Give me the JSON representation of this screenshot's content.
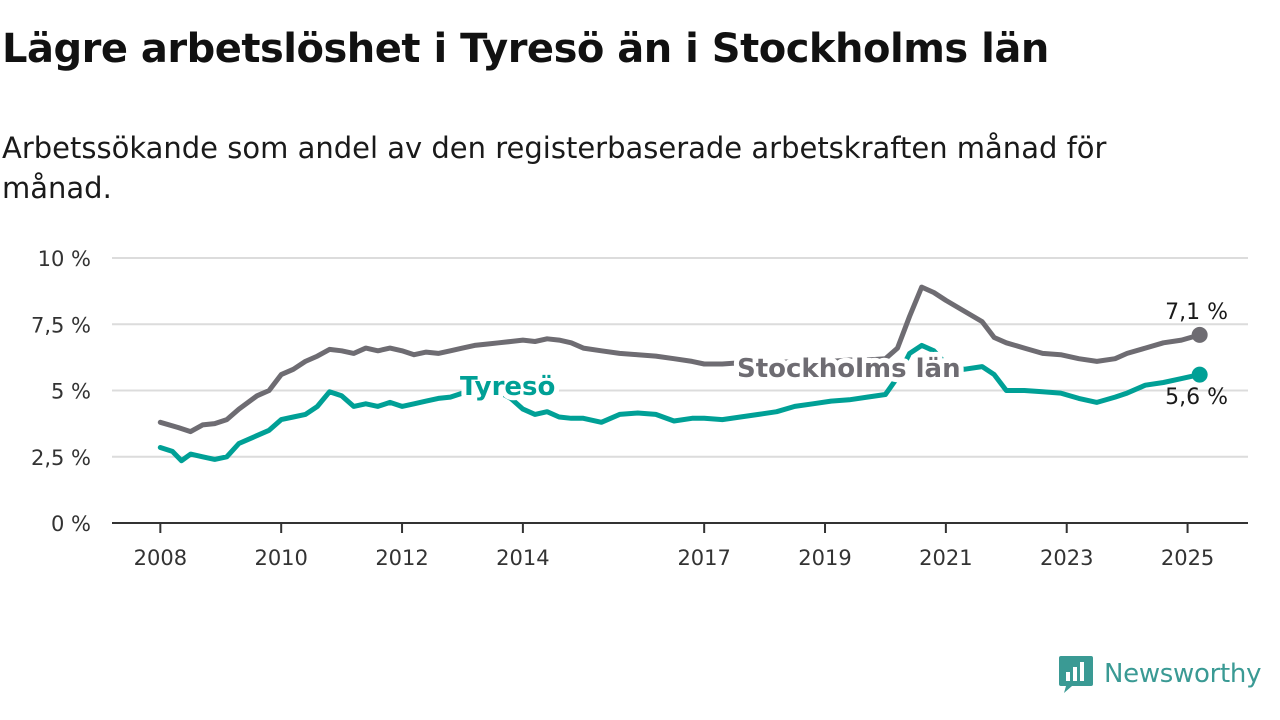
{
  "title": "Lägre arbetslöshet i Tyresö än i Stockholms län",
  "subtitle": "Arbetssökande som andel av den registerbaserade arbetskraften månad för månad.",
  "brand": {
    "name": "Newsworthy",
    "icon": "newsworthy-logo-icon"
  },
  "colors": {
    "stockholm": "#6e6c72",
    "tyreso": "#00a096",
    "grid": "#dcdcdc",
    "axis": "#333333",
    "brand": "#3a9a94"
  },
  "chart_data": {
    "type": "line",
    "title": "Lägre arbetslöshet i Tyresö än i Stockholms län",
    "subtitle": "Arbetssökande som andel av den registerbaserade arbetskraften månad för månad.",
    "x_ticks": [
      2008,
      2010,
      2012,
      2014,
      2017,
      2019,
      2021,
      2023,
      2025
    ],
    "y_ticks": [
      {
        "value": 0,
        "label": "0 %"
      },
      {
        "value": 2.5,
        "label": "2,5 %"
      },
      {
        "value": 5,
        "label": "5 %"
      },
      {
        "value": 7.5,
        "label": "7,5 %"
      },
      {
        "value": 10,
        "label": "10 %"
      }
    ],
    "xlim": [
      2007.2,
      2026.0
    ],
    "ylim": [
      0,
      10
    ],
    "grid": true,
    "series": [
      {
        "name": "Stockholms län",
        "end_label": "7,1 %",
        "points": [
          [
            2008.0,
            3.8
          ],
          [
            2008.3,
            3.6
          ],
          [
            2008.5,
            3.45
          ],
          [
            2008.7,
            3.7
          ],
          [
            2008.9,
            3.75
          ],
          [
            2009.1,
            3.9
          ],
          [
            2009.3,
            4.3
          ],
          [
            2009.6,
            4.8
          ],
          [
            2009.8,
            5.0
          ],
          [
            2010.0,
            5.6
          ],
          [
            2010.2,
            5.8
          ],
          [
            2010.4,
            6.1
          ],
          [
            2010.6,
            6.3
          ],
          [
            2010.8,
            6.55
          ],
          [
            2011.0,
            6.5
          ],
          [
            2011.2,
            6.4
          ],
          [
            2011.4,
            6.6
          ],
          [
            2011.6,
            6.5
          ],
          [
            2011.8,
            6.6
          ],
          [
            2012.0,
            6.5
          ],
          [
            2012.2,
            6.35
          ],
          [
            2012.4,
            6.45
          ],
          [
            2012.6,
            6.4
          ],
          [
            2012.8,
            6.5
          ],
          [
            2013.0,
            6.6
          ],
          [
            2013.2,
            6.7
          ],
          [
            2013.4,
            6.75
          ],
          [
            2013.6,
            6.8
          ],
          [
            2013.8,
            6.85
          ],
          [
            2014.0,
            6.9
          ],
          [
            2014.2,
            6.85
          ],
          [
            2014.4,
            6.95
          ],
          [
            2014.6,
            6.9
          ],
          [
            2014.8,
            6.8
          ],
          [
            2015.0,
            6.6
          ],
          [
            2015.3,
            6.5
          ],
          [
            2015.6,
            6.4
          ],
          [
            2015.9,
            6.35
          ],
          [
            2016.2,
            6.3
          ],
          [
            2016.5,
            6.2
          ],
          [
            2016.8,
            6.1
          ],
          [
            2017.0,
            6.0
          ],
          [
            2017.3,
            6.0
          ],
          [
            2017.6,
            6.05
          ],
          [
            2017.9,
            6.0
          ],
          [
            2018.2,
            6.05
          ],
          [
            2018.5,
            6.1
          ],
          [
            2018.8,
            6.1
          ],
          [
            2019.1,
            6.1
          ],
          [
            2019.4,
            6.15
          ],
          [
            2019.7,
            6.15
          ],
          [
            2020.0,
            6.2
          ],
          [
            2020.2,
            6.6
          ],
          [
            2020.4,
            7.8
          ],
          [
            2020.6,
            8.9
          ],
          [
            2020.8,
            8.7
          ],
          [
            2021.0,
            8.4
          ],
          [
            2021.3,
            8.0
          ],
          [
            2021.6,
            7.6
          ],
          [
            2021.8,
            7.0
          ],
          [
            2022.0,
            6.8
          ],
          [
            2022.3,
            6.6
          ],
          [
            2022.6,
            6.4
          ],
          [
            2022.9,
            6.35
          ],
          [
            2023.2,
            6.2
          ],
          [
            2023.5,
            6.1
          ],
          [
            2023.8,
            6.2
          ],
          [
            2024.0,
            6.4
          ],
          [
            2024.3,
            6.6
          ],
          [
            2024.6,
            6.8
          ],
          [
            2024.9,
            6.9
          ],
          [
            2025.2,
            7.1
          ]
        ]
      },
      {
        "name": "Tyresö",
        "end_label": "5,6 %",
        "points": [
          [
            2008.0,
            2.85
          ],
          [
            2008.2,
            2.7
          ],
          [
            2008.35,
            2.35
          ],
          [
            2008.5,
            2.6
          ],
          [
            2008.7,
            2.5
          ],
          [
            2008.9,
            2.4
          ],
          [
            2009.1,
            2.5
          ],
          [
            2009.3,
            3.0
          ],
          [
            2009.6,
            3.3
          ],
          [
            2009.8,
            3.5
          ],
          [
            2010.0,
            3.9
          ],
          [
            2010.2,
            4.0
          ],
          [
            2010.4,
            4.1
          ],
          [
            2010.6,
            4.4
          ],
          [
            2010.8,
            4.95
          ],
          [
            2011.0,
            4.8
          ],
          [
            2011.2,
            4.4
          ],
          [
            2011.4,
            4.5
          ],
          [
            2011.6,
            4.4
          ],
          [
            2011.8,
            4.55
          ],
          [
            2012.0,
            4.4
          ],
          [
            2012.2,
            4.5
          ],
          [
            2012.4,
            4.6
          ],
          [
            2012.6,
            4.7
          ],
          [
            2012.8,
            4.75
          ],
          [
            2013.0,
            4.9
          ],
          [
            2013.2,
            5.0
          ],
          [
            2013.4,
            5.05
          ],
          [
            2013.6,
            4.95
          ],
          [
            2013.8,
            4.7
          ],
          [
            2014.0,
            4.3
          ],
          [
            2014.2,
            4.1
          ],
          [
            2014.4,
            4.2
          ],
          [
            2014.6,
            4.0
          ],
          [
            2014.8,
            3.95
          ],
          [
            2015.0,
            3.95
          ],
          [
            2015.3,
            3.8
          ],
          [
            2015.6,
            4.1
          ],
          [
            2015.9,
            4.15
          ],
          [
            2016.2,
            4.1
          ],
          [
            2016.5,
            3.85
          ],
          [
            2016.8,
            3.95
          ],
          [
            2017.0,
            3.95
          ],
          [
            2017.3,
            3.9
          ],
          [
            2017.6,
            4.0
          ],
          [
            2017.9,
            4.1
          ],
          [
            2018.2,
            4.2
          ],
          [
            2018.5,
            4.4
          ],
          [
            2018.8,
            4.5
          ],
          [
            2019.1,
            4.6
          ],
          [
            2019.4,
            4.65
          ],
          [
            2019.7,
            4.75
          ],
          [
            2020.0,
            4.85
          ],
          [
            2020.2,
            5.5
          ],
          [
            2020.4,
            6.4
          ],
          [
            2020.6,
            6.7
          ],
          [
            2020.8,
            6.5
          ],
          [
            2021.0,
            6.0
          ],
          [
            2021.3,
            5.8
          ],
          [
            2021.6,
            5.9
          ],
          [
            2021.8,
            5.6
          ],
          [
            2022.0,
            5.0
          ],
          [
            2022.3,
            5.0
          ],
          [
            2022.6,
            4.95
          ],
          [
            2022.9,
            4.9
          ],
          [
            2023.2,
            4.7
          ],
          [
            2023.5,
            4.55
          ],
          [
            2023.8,
            4.75
          ],
          [
            2024.0,
            4.9
          ],
          [
            2024.3,
            5.2
          ],
          [
            2024.6,
            5.3
          ],
          [
            2024.9,
            5.45
          ],
          [
            2025.2,
            5.6
          ]
        ]
      }
    ]
  }
}
